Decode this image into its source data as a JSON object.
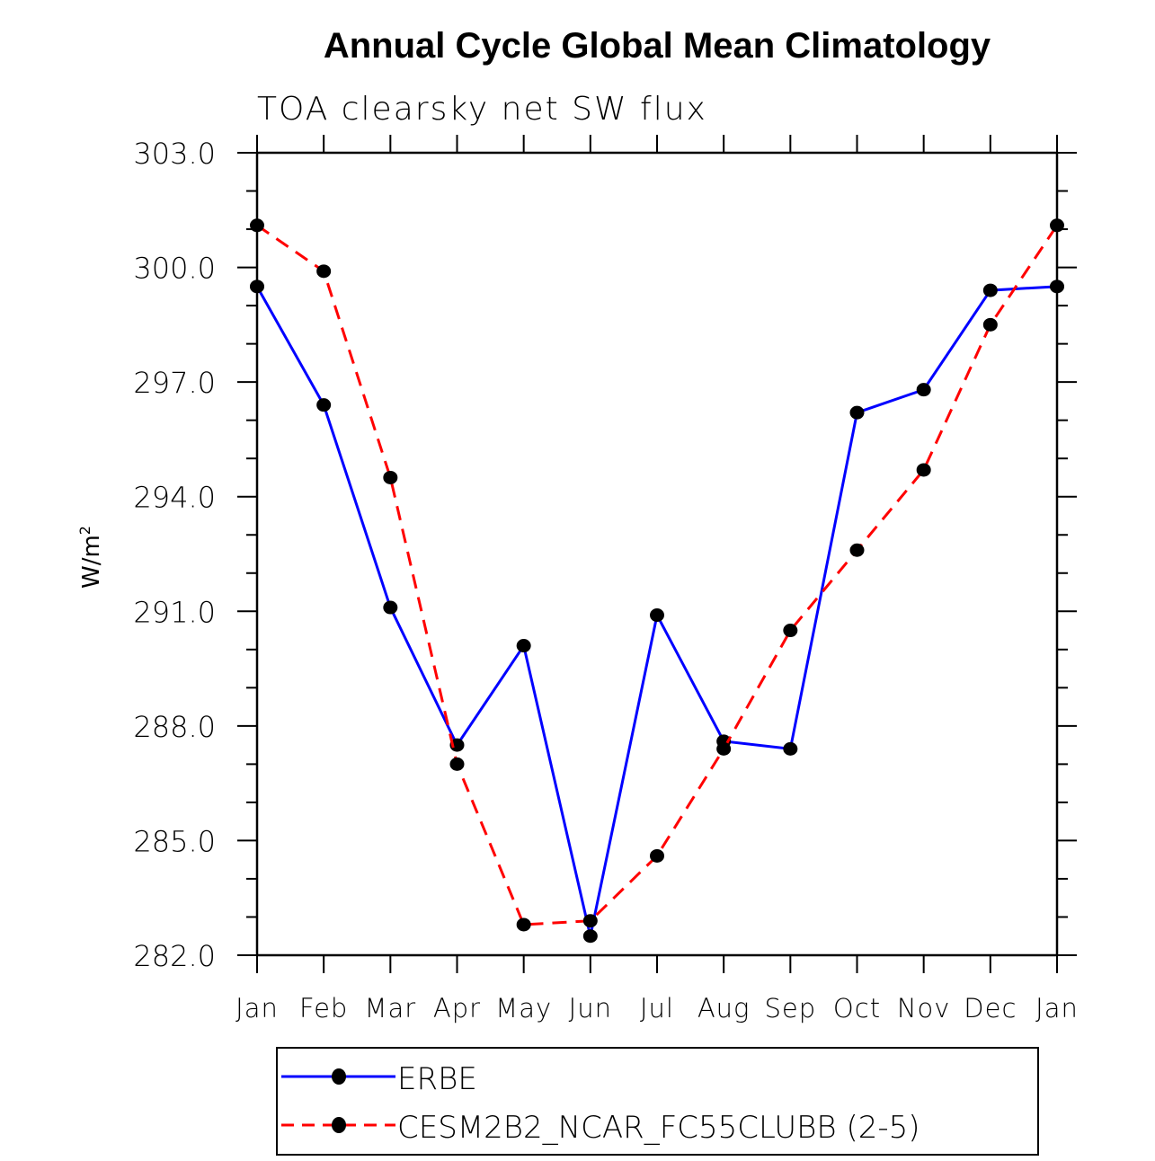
{
  "chart_data": {
    "type": "line",
    "title": "Annual Cycle Global Mean Climatology",
    "subtitle": "TOA clearsky net SW flux",
    "xlabel": "",
    "ylabel": "W/m",
    "ylabel_superscript": "2",
    "ylim": [
      282.0,
      303.0
    ],
    "yticks": [
      282.0,
      285.0,
      288.0,
      291.0,
      294.0,
      297.0,
      300.0,
      303.0
    ],
    "ytick_labels": [
      "282.0",
      "285.0",
      "288.0",
      "291.0",
      "294.0",
      "297.0",
      "300.0",
      "303.0"
    ],
    "categories": [
      "Jan",
      "Feb",
      "Mar",
      "Apr",
      "May",
      "Jun",
      "Jul",
      "Aug",
      "Sep",
      "Oct",
      "Nov",
      "Dec",
      "Jan"
    ],
    "grid": false,
    "legend_position": "bottom",
    "series": [
      {
        "name": "ERBE",
        "color": "#0000ff",
        "style": "solid",
        "marker": "circle",
        "values": [
          299.5,
          296.4,
          291.1,
          287.5,
          290.1,
          282.5,
          290.9,
          287.6,
          287.4,
          296.2,
          296.8,
          299.4,
          299.5
        ]
      },
      {
        "name": "CESM2B2_NCAR_FC55CLUBB (2-5)",
        "color": "#ff0000",
        "style": "dashed",
        "marker": "circle",
        "values": [
          301.1,
          299.9,
          294.5,
          287.0,
          282.8,
          282.9,
          284.6,
          287.4,
          290.5,
          292.6,
          294.7,
          298.5,
          301.1
        ]
      }
    ]
  }
}
